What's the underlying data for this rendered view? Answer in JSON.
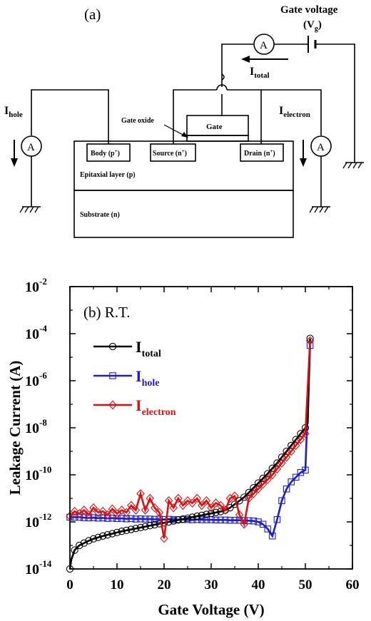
{
  "diagram": {
    "panel_label": "(a)",
    "gate_voltage_title": "Gate voltage",
    "vg_main": "(V",
    "vg_sub": "g",
    "vg_close": ")",
    "itotal_main": "I",
    "itotal_sub": "total",
    "ihole_main": "I",
    "ihole_sub": "hole",
    "ielectron_main": "I",
    "ielectron_sub": "electron",
    "ammeter": "A",
    "gate_oxide": "Gate oxide",
    "gate": "Gate",
    "body_main": "Body (p",
    "body_sup": "+",
    "body_close": ")",
    "source_main": "Source (n",
    "source_sup": "+",
    "source_close": ")",
    "drain_main": "Drain (n",
    "drain_sup": "+",
    "drain_close": ")",
    "epi": "Epitaxial layer (p)",
    "substrate": "Substrate (n)"
  },
  "chart_data": {
    "type": "line",
    "panel_label": "(b) R.T.",
    "xlabel": "Gate Voltage  (V)",
    "ylabel": "Leakage Current  (A)",
    "xlim": [
      0,
      60
    ],
    "ylim_exponent": [
      -14,
      -2
    ],
    "y_scale": "log",
    "x_ticks": [
      "0",
      "10",
      "20",
      "30",
      "40",
      "50",
      "60"
    ],
    "y_tick_base": "10",
    "y_tick_exponents": [
      "-2",
      "-4",
      "-6",
      "-8",
      "-10",
      "-12",
      "-14"
    ],
    "legend_position": "upper-left",
    "series": [
      {
        "name_main": "I",
        "name_sub": "total",
        "color": "#000000",
        "marker": "circle",
        "x": [
          0,
          0.3,
          1,
          2,
          3,
          4,
          5,
          6,
          7,
          8,
          9,
          10,
          11,
          12,
          13,
          14,
          15,
          16,
          17,
          18,
          19,
          20,
          21,
          22,
          23,
          24,
          25,
          26,
          27,
          28,
          29,
          30,
          31,
          32,
          33,
          34,
          35,
          36,
          37,
          38,
          39,
          40,
          41,
          42,
          43,
          44,
          45,
          46,
          47,
          48,
          49,
          50,
          50.5,
          51
        ],
        "log10y": [
          -14.0,
          -13.6,
          -13.2,
          -13.0,
          -12.9,
          -12.8,
          -12.72,
          -12.66,
          -12.6,
          -12.55,
          -12.5,
          -12.45,
          -12.4,
          -12.36,
          -12.32,
          -12.28,
          -12.24,
          -12.2,
          -12.16,
          -12.12,
          -12.08,
          -12.04,
          -12.0,
          -11.96,
          -11.92,
          -11.88,
          -11.84,
          -11.8,
          -11.76,
          -11.72,
          -11.68,
          -11.64,
          -11.6,
          -11.56,
          -11.5,
          -11.4,
          -11.25,
          -11.1,
          -10.95,
          -10.75,
          -10.55,
          -10.35,
          -10.15,
          -9.95,
          -9.72,
          -9.5,
          -9.25,
          -9.0,
          -8.75,
          -8.5,
          -8.25,
          -8.0,
          -7.8,
          -4.2
        ]
      },
      {
        "name_main": "I",
        "name_sub": "hole",
        "color": "#1c1ccc",
        "marker": "square",
        "x": [
          0,
          1,
          2,
          3,
          4,
          5,
          6,
          7,
          8,
          9,
          10,
          11,
          12,
          13,
          14,
          15,
          16,
          17,
          18,
          19,
          20,
          21,
          22,
          23,
          24,
          25,
          26,
          27,
          28,
          29,
          30,
          31,
          32,
          33,
          34,
          35,
          36,
          37,
          38,
          39,
          40,
          41,
          42,
          43,
          44,
          45,
          46,
          47,
          48,
          49,
          50,
          51
        ],
        "log10y": [
          -11.8,
          -11.8,
          -11.8,
          -11.82,
          -11.83,
          -11.82,
          -11.84,
          -11.83,
          -11.85,
          -11.84,
          -11.86,
          -11.85,
          -11.87,
          -11.86,
          -11.88,
          -11.87,
          -11.88,
          -11.88,
          -11.89,
          -11.88,
          -11.9,
          -11.89,
          -11.9,
          -11.9,
          -11.9,
          -11.9,
          -11.91,
          -11.9,
          -11.91,
          -11.91,
          -11.91,
          -11.92,
          -11.92,
          -11.92,
          -11.93,
          -11.93,
          -11.93,
          -11.94,
          -11.95,
          -11.96,
          -12.0,
          -12.1,
          -12.3,
          -12.6,
          -11.9,
          -11.1,
          -10.6,
          -10.3,
          -10.1,
          -9.9,
          -9.8,
          -4.5
        ]
      },
      {
        "name_main": "I",
        "name_sub": "electron",
        "color": "#dd1010",
        "marker": "diamond",
        "x": [
          0,
          1,
          2,
          3,
          4,
          5,
          6,
          7,
          8,
          9,
          10,
          11,
          12,
          13,
          14,
          15,
          16,
          17,
          18,
          19,
          20,
          21,
          22,
          23,
          24,
          25,
          26,
          27,
          28,
          29,
          30,
          31,
          32,
          33,
          34,
          35,
          36,
          37,
          38,
          39,
          40,
          41,
          42,
          43,
          44,
          45,
          46,
          47,
          48,
          49,
          50,
          51
        ],
        "log10y": [
          -11.75,
          -11.55,
          -11.65,
          -11.5,
          -11.7,
          -11.4,
          -11.6,
          -11.55,
          -11.7,
          -11.45,
          -11.65,
          -11.5,
          -11.6,
          -11.3,
          -11.5,
          -10.8,
          -11.5,
          -11.0,
          -11.4,
          -11.6,
          -12.7,
          -11.1,
          -11.4,
          -11.0,
          -11.3,
          -11.1,
          -11.2,
          -11.0,
          -11.3,
          -11.1,
          -11.4,
          -11.2,
          -11.3,
          -11.5,
          -11.0,
          -10.9,
          -11.7,
          -12.1,
          -11.0,
          -10.8,
          -10.6,
          -10.4,
          -10.2,
          -10.0,
          -9.75,
          -9.5,
          -9.25,
          -9.0,
          -8.75,
          -8.5,
          -8.25,
          -4.3
        ]
      }
    ]
  }
}
